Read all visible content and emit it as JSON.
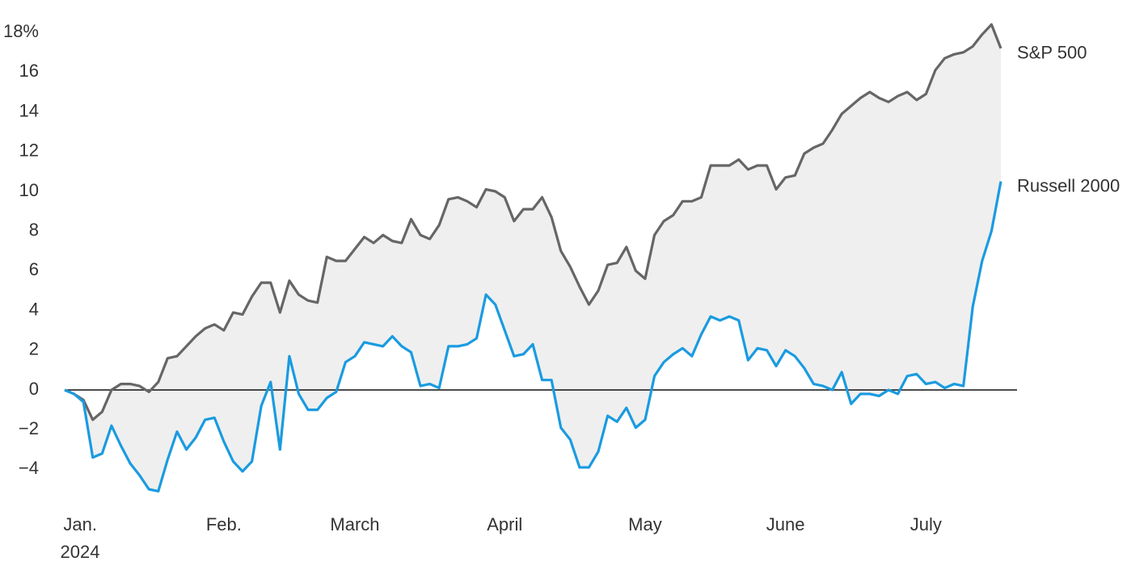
{
  "chart_data": {
    "type": "line",
    "categories": [
      null,
      null,
      "Jan.",
      null,
      null,
      null,
      null,
      null,
      null,
      null,
      null,
      null,
      null,
      null,
      null,
      null,
      null,
      "Feb.",
      null,
      null,
      null,
      null,
      null,
      null,
      null,
      null,
      null,
      null,
      null,
      null,
      null,
      "March",
      null,
      null,
      null,
      null,
      null,
      null,
      null,
      null,
      null,
      null,
      null,
      null,
      null,
      null,
      null,
      "April",
      null,
      null,
      null,
      null,
      null,
      null,
      null,
      null,
      null,
      null,
      null,
      null,
      null,
      null,
      "May",
      null,
      null,
      null,
      null,
      null,
      null,
      null,
      null,
      null,
      null,
      null,
      null,
      null,
      null,
      "June",
      null,
      null,
      null,
      null,
      null,
      null,
      null,
      null,
      null,
      null,
      null,
      null,
      null,
      null,
      "July",
      null,
      null,
      null,
      null,
      null,
      null,
      null,
      null
    ],
    "year_label": "2024",
    "ylim": [
      -6,
      19
    ],
    "yticks": [
      {
        "value": -4,
        "label": "−4"
      },
      {
        "value": -2,
        "label": "−2"
      },
      0,
      2,
      4,
      6,
      8,
      10,
      12,
      14,
      16,
      {
        "value": 18,
        "label": "18%"
      }
    ],
    "zero_line": true,
    "fill_between": "#efefef",
    "series": [
      {
        "name": "S&P 500",
        "color": "#666666",
        "values": [
          0,
          -0.2,
          -0.5,
          -1.5,
          -1.1,
          0,
          0.3,
          0.3,
          0.2,
          -0.1,
          0.4,
          1.6,
          1.7,
          2.2,
          2.7,
          3.1,
          3.3,
          3.0,
          3.9,
          3.8,
          4.7,
          5.4,
          5.4,
          3.9,
          5.5,
          4.8,
          4.5,
          4.4,
          6.7,
          6.5,
          6.5,
          7.1,
          7.7,
          7.4,
          7.8,
          7.5,
          7.4,
          8.6,
          7.8,
          7.6,
          8.3,
          9.6,
          9.7,
          9.5,
          9.2,
          10.1,
          10.0,
          9.7,
          8.5,
          9.1,
          9.1,
          9.7,
          8.7,
          7.0,
          6.2,
          5.2,
          4.3,
          5.0,
          6.3,
          6.4,
          7.2,
          6.0,
          5.6,
          7.8,
          8.5,
          8.8,
          9.5,
          9.5,
          9.7,
          11.3,
          11.3,
          11.3,
          11.6,
          11.1,
          11.3,
          11.3,
          10.1,
          10.7,
          10.8,
          11.9,
          12.2,
          12.4,
          13.1,
          13.9,
          14.3,
          14.7,
          15.0,
          14.7,
          14.5,
          14.8,
          15.0,
          14.6,
          14.9,
          16.1,
          16.7,
          16.9,
          17.0,
          17.3,
          17.9,
          18.4,
          17.2
        ]
      },
      {
        "name": "Russell 2000",
        "color": "#1a9be0",
        "values": [
          0,
          -0.2,
          -0.6,
          -3.4,
          -3.2,
          -1.8,
          -2.8,
          -3.7,
          -4.3,
          -5.0,
          -5.1,
          -3.5,
          -2.1,
          -3.0,
          -2.4,
          -1.5,
          -1.4,
          -2.6,
          -3.6,
          -4.1,
          -3.6,
          -0.8,
          0.4,
          -3.0,
          1.7,
          -0.2,
          -1.0,
          -1.0,
          -0.4,
          -0.1,
          1.4,
          1.7,
          2.4,
          2.3,
          2.2,
          2.7,
          2.2,
          1.9,
          0.2,
          0.3,
          0.1,
          2.2,
          2.2,
          2.3,
          2.6,
          4.8,
          4.3,
          3.0,
          1.7,
          1.8,
          2.3,
          0.5,
          0.5,
          -1.9,
          -2.5,
          -3.9,
          -3.9,
          -3.1,
          -1.3,
          -1.6,
          -0.9,
          -1.9,
          -1.5,
          0.7,
          1.4,
          1.8,
          2.1,
          1.7,
          2.8,
          3.7,
          3.5,
          3.7,
          3.5,
          1.5,
          2.1,
          2.0,
          1.2,
          2.0,
          1.7,
          1.1,
          0.3,
          0.2,
          0.0,
          0.9,
          -0.7,
          -0.2,
          -0.2,
          -0.3,
          0.0,
          -0.2,
          0.7,
          0.8,
          0.3,
          0.4,
          0.1,
          0.3,
          0.2,
          4.2,
          6.5,
          8.0,
          10.5
        ]
      }
    ]
  }
}
